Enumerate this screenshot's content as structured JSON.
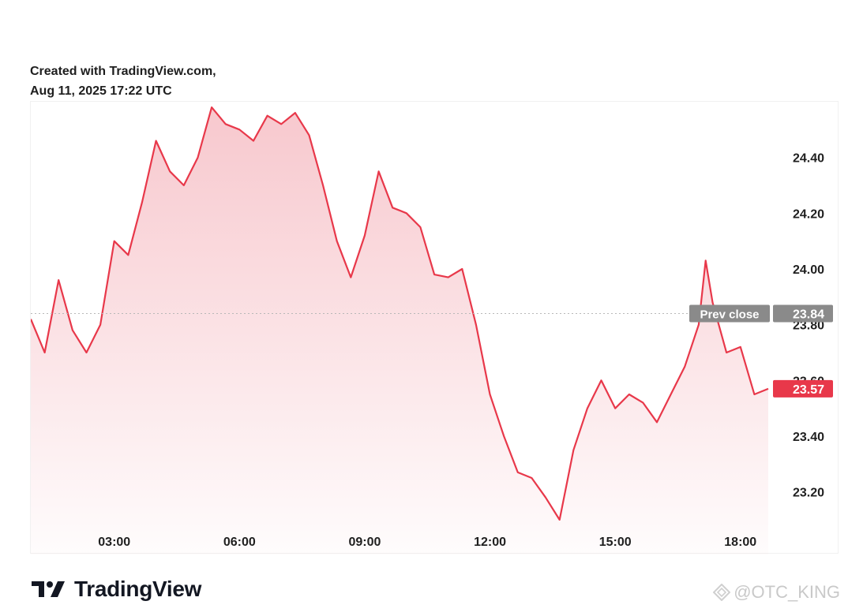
{
  "header": {
    "line1": "Created with TradingView.com,",
    "line2": "Aug 11, 2025 17:22 UTC"
  },
  "brand": {
    "name": "TradingView"
  },
  "watermark": {
    "text": "@OTC_KING"
  },
  "colors": {
    "line": "#e8384a",
    "fill_top": "#f7c5cb",
    "badge_prev": "#8a8a8a",
    "badge_last": "#e8384a",
    "axis_text": "#1f1f1f"
  },
  "chart_data": {
    "type": "area",
    "x_axis": {
      "range": [
        "01:00",
        "18:40"
      ],
      "ticks": [
        "03:00",
        "06:00",
        "09:00",
        "12:00",
        "15:00",
        "18:00"
      ]
    },
    "y_axis": {
      "range": [
        23.1,
        24.6
      ],
      "ticks": [
        "24.40",
        "24.20",
        "24.00",
        "23.80",
        "23.60",
        "23.40",
        "23.20"
      ]
    },
    "grid": false,
    "prev_close": {
      "label": "Prev close",
      "value": "23.84"
    },
    "last_price": {
      "value": "23.57"
    },
    "series": [
      {
        "x": [
          "01:00",
          "01:20",
          "01:40",
          "02:00",
          "02:20",
          "02:40",
          "03:00",
          "03:20",
          "03:40",
          "04:00",
          "04:20",
          "04:40",
          "05:00",
          "05:20",
          "05:40",
          "06:00",
          "06:20",
          "06:40",
          "07:00",
          "07:20",
          "07:40",
          "08:00",
          "08:20",
          "08:40",
          "09:00",
          "09:20",
          "09:40",
          "10:00",
          "10:20",
          "10:40",
          "11:00",
          "11:20",
          "11:40",
          "12:00",
          "12:20",
          "12:40",
          "13:00",
          "13:20",
          "13:40",
          "14:00",
          "14:20",
          "14:40",
          "15:00",
          "15:20",
          "15:40",
          "16:00",
          "16:20",
          "16:40",
          "17:00",
          "17:10",
          "17:20",
          "17:40",
          "18:00",
          "18:20",
          "18:40"
        ],
        "values": [
          23.82,
          23.7,
          23.96,
          23.78,
          23.7,
          23.8,
          24.1,
          24.05,
          24.24,
          24.46,
          24.35,
          24.3,
          24.4,
          24.58,
          24.52,
          24.5,
          24.46,
          24.55,
          24.52,
          24.56,
          24.48,
          24.3,
          24.1,
          23.97,
          24.12,
          24.35,
          24.22,
          24.2,
          24.15,
          23.98,
          23.97,
          24.0,
          23.8,
          23.55,
          23.4,
          23.27,
          23.25,
          23.18,
          23.1,
          23.35,
          23.5,
          23.6,
          23.5,
          23.55,
          23.52,
          23.45,
          23.55,
          23.65,
          23.8,
          24.03,
          23.88,
          23.7,
          23.72,
          23.55,
          23.57
        ]
      }
    ]
  }
}
